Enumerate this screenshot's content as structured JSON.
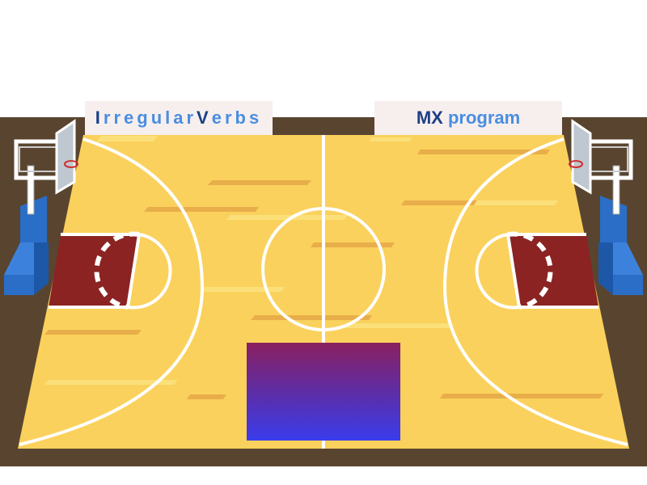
{
  "title_left": {
    "part1_dark": "I",
    "part1_light": "rregular",
    "part2_dark": "V",
    "part2_light": "erbs"
  },
  "title_right": {
    "dark": "MX",
    "light": "program"
  },
  "colors": {
    "court": "#fad15c",
    "border": "#59452f",
    "key_paint": "#8b2323",
    "lines": "#ffffff",
    "stand": "#2a6ec8",
    "title_dark": "#1c3f86",
    "title_light": "#4a8ee0"
  }
}
